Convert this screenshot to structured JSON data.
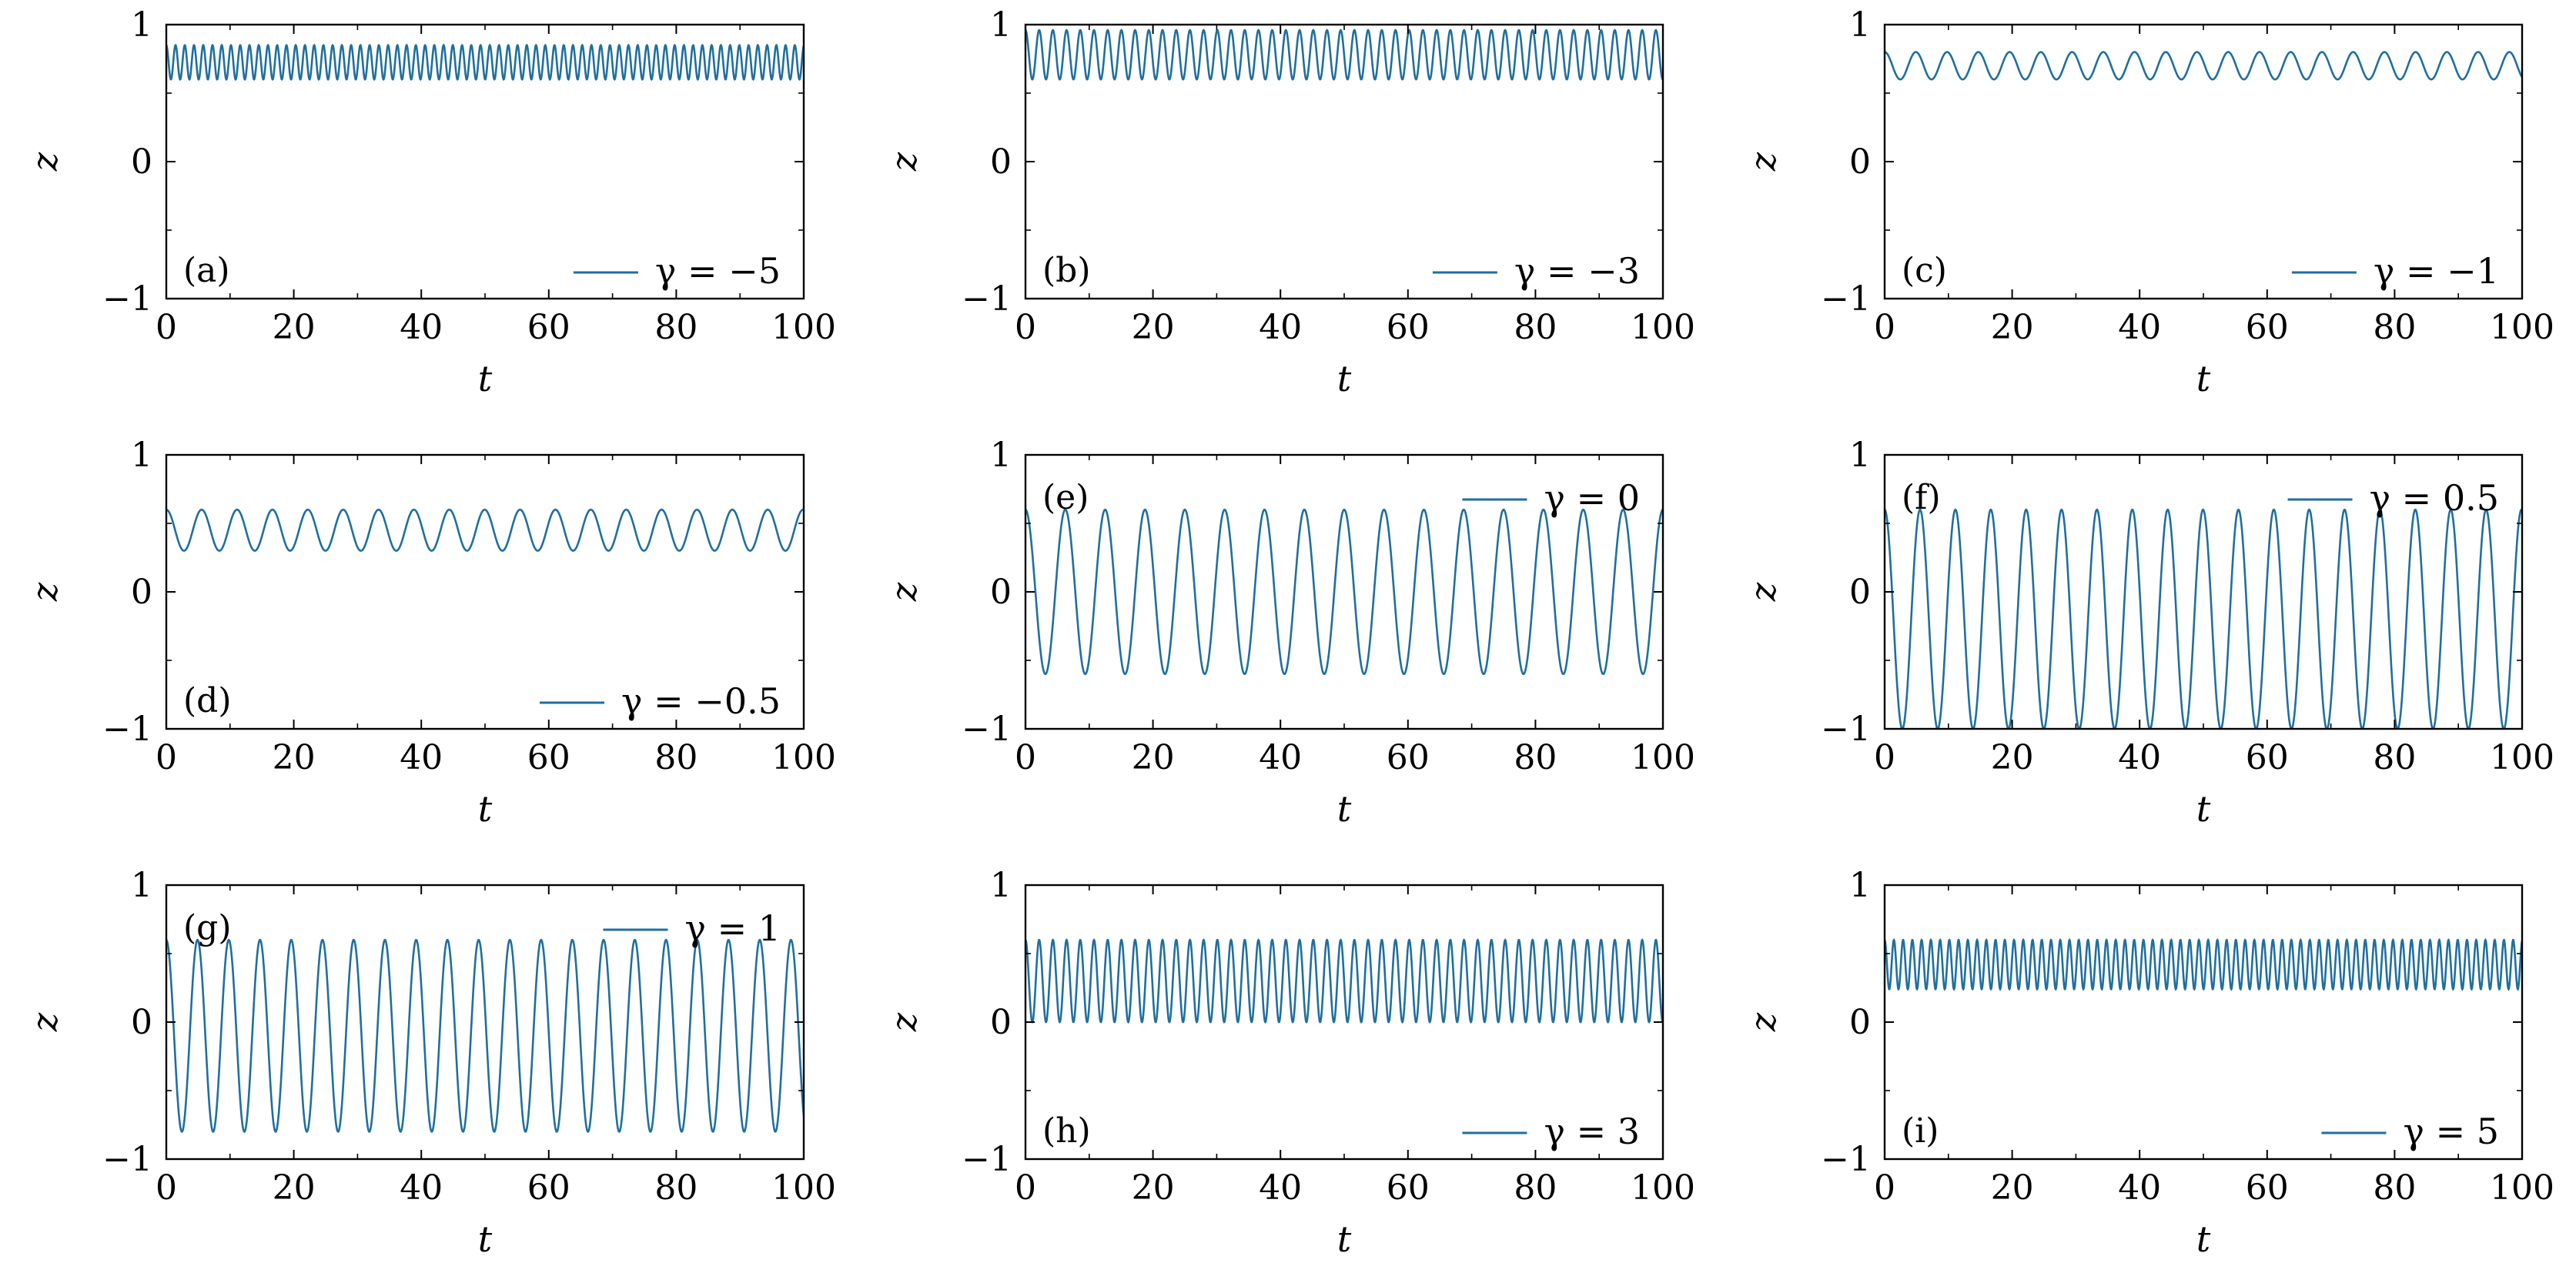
{
  "colors": {
    "series": "#1f6f9f",
    "axes": "#000000"
  },
  "axes_common": {
    "xlabel": "t",
    "ylabel": "z",
    "xlim": [
      0,
      100
    ],
    "ylim": [
      -1,
      1
    ],
    "xticks": [
      0,
      20,
      40,
      60,
      80,
      100
    ],
    "yticks": [
      -1,
      0,
      1
    ],
    "grid": false
  },
  "chart_data": [
    {
      "type": "line",
      "panel": "(a)",
      "legend": "γ = −5",
      "center": 0.725,
      "amplitude": 0.125,
      "period": 1.45,
      "phase": 0.0,
      "xlim": [
        0,
        100
      ],
      "ylim": [
        -1,
        1
      ]
    },
    {
      "type": "line",
      "panel": "(b)",
      "legend": "γ = −3",
      "center": 0.78,
      "amplitude": 0.18,
      "period": 2.15,
      "phase": 0.0,
      "xlim": [
        0,
        100
      ],
      "ylim": [
        -1,
        1
      ]
    },
    {
      "type": "line",
      "panel": "(c)",
      "legend": "γ = −1",
      "center": 0.7,
      "amplitude": 0.1,
      "period": 4.9,
      "phase": 0.0,
      "xlim": [
        0,
        100
      ],
      "ylim": [
        -1,
        1
      ]
    },
    {
      "type": "line",
      "panel": "(d)",
      "legend": "γ = −0.5",
      "center": 0.45,
      "amplitude": 0.15,
      "period": 5.55,
      "phase": 0.0,
      "xlim": [
        0,
        100
      ],
      "ylim": [
        -1,
        1
      ]
    },
    {
      "type": "line",
      "panel": "(e)",
      "legend": "γ = 0",
      "center": 0.0,
      "amplitude": 0.6,
      "period": 6.25,
      "phase": 0.0,
      "xlim": [
        0,
        100
      ],
      "ylim": [
        -1,
        1
      ]
    },
    {
      "type": "line",
      "panel": "(f)",
      "legend": "γ = 0.5",
      "center": -0.2,
      "amplitude": 0.8,
      "period": 5.55,
      "phase": 0.0,
      "xlim": [
        0,
        100
      ],
      "ylim": [
        -1,
        1
      ]
    },
    {
      "type": "line",
      "panel": "(g)",
      "legend": "γ = 1",
      "center": -0.1,
      "amplitude": 0.7,
      "period": 4.9,
      "phase": 0.0,
      "xlim": [
        0,
        100
      ],
      "ylim": [
        -1,
        1
      ]
    },
    {
      "type": "line",
      "panel": "(h)",
      "legend": "γ = 3",
      "center": 0.3,
      "amplitude": 0.3,
      "period": 2.15,
      "phase": 0.0,
      "xlim": [
        0,
        100
      ],
      "ylim": [
        -1,
        1
      ]
    },
    {
      "type": "line",
      "panel": "(i)",
      "legend": "γ = 5",
      "center": 0.42,
      "amplitude": 0.18,
      "period": 1.45,
      "phase": 0.0,
      "xlim": [
        0,
        100
      ],
      "ylim": [
        -1,
        1
      ]
    }
  ]
}
